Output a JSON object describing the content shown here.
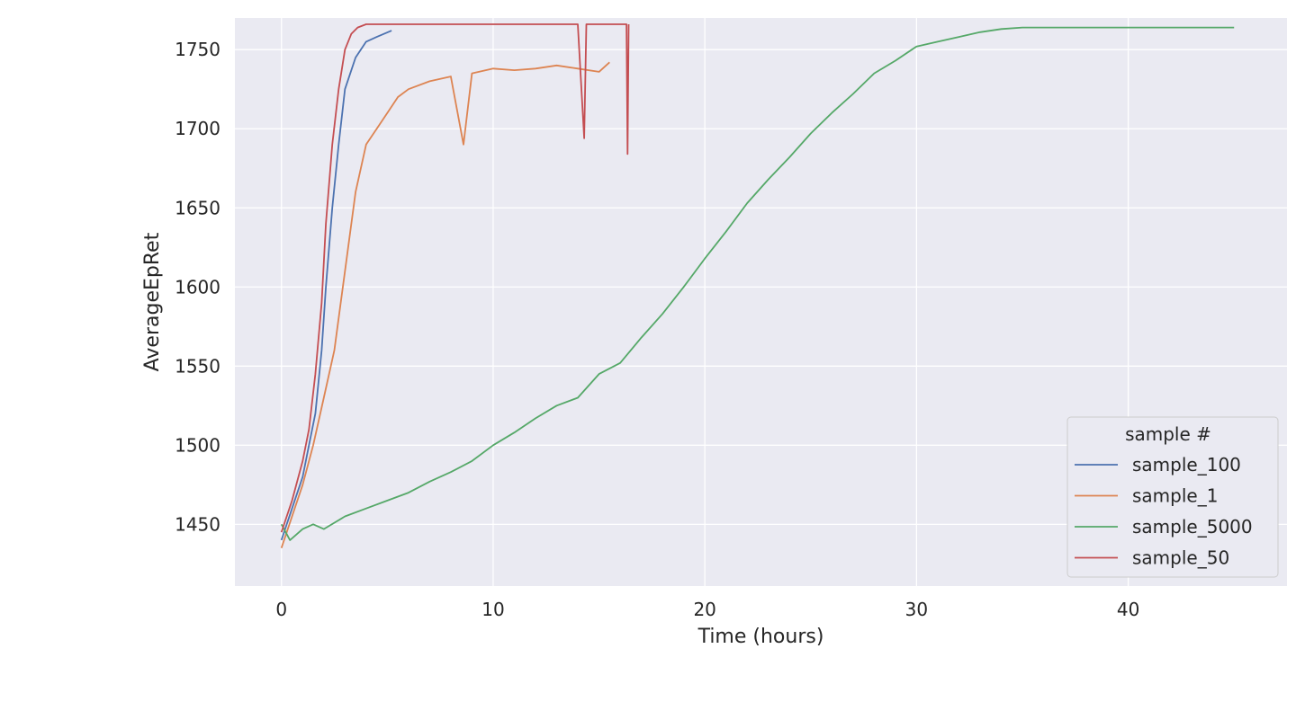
{
  "chart_data": {
    "type": "line",
    "xlabel": "Time (hours)",
    "ylabel": "AverageEpRet",
    "xlim": [
      -2.2,
      47.5
    ],
    "ylim": [
      1411,
      1770
    ],
    "x_ticks": [
      0,
      10,
      20,
      30,
      40
    ],
    "y_ticks": [
      1450,
      1500,
      1550,
      1600,
      1650,
      1700,
      1750
    ],
    "grid": true,
    "background": "#eaeaf2",
    "legend": {
      "title": "sample #",
      "placement": "bottom-right"
    },
    "series": [
      {
        "name": "sample_100",
        "color": "#4c72b0",
        "x": [
          0,
          0.5,
          1.0,
          1.3,
          1.6,
          1.9,
          2.1,
          2.4,
          2.7,
          3.0,
          3.5,
          4.0,
          4.5,
          5.2
        ],
        "y": [
          1440,
          1460,
          1480,
          1500,
          1520,
          1560,
          1600,
          1650,
          1690,
          1725,
          1745,
          1755,
          1758,
          1762
        ]
      },
      {
        "name": "sample_1",
        "color": "#dd8452",
        "x": [
          0,
          0.5,
          1.0,
          1.5,
          2.0,
          2.5,
          3.0,
          3.5,
          4.0,
          4.5,
          5.0,
          5.5,
          6.0,
          7.0,
          8.0,
          8.6,
          9.0,
          10.0,
          11.0,
          12.0,
          13.0,
          14.0,
          15.0,
          15.5
        ],
        "y": [
          1435,
          1455,
          1475,
          1500,
          1530,
          1560,
          1610,
          1660,
          1690,
          1700,
          1710,
          1720,
          1725,
          1730,
          1733,
          1690,
          1735,
          1738,
          1737,
          1738,
          1740,
          1738,
          1736,
          1742
        ]
      },
      {
        "name": "sample_5000",
        "color": "#55a868",
        "x": [
          0,
          0.4,
          1.0,
          1.5,
          2.0,
          3.0,
          4.0,
          5.0,
          6.0,
          7.0,
          8.0,
          9.0,
          10.0,
          11.0,
          12.0,
          13.0,
          14.0,
          15.0,
          16.0,
          17.0,
          18.0,
          19.0,
          20.0,
          21.0,
          22.0,
          23.0,
          24.0,
          25.0,
          26.0,
          27.0,
          28.0,
          29.0,
          30.0,
          31.0,
          32.0,
          33.0,
          34.0,
          35.0,
          36.0,
          38.0,
          40.0,
          42.0,
          44.0,
          45.0
        ],
        "y": [
          1450,
          1440,
          1447,
          1450,
          1447,
          1455,
          1460,
          1465,
          1470,
          1477,
          1483,
          1490,
          1500,
          1508,
          1517,
          1525,
          1530,
          1545,
          1552,
          1568,
          1583,
          1600,
          1618,
          1635,
          1653,
          1668,
          1682,
          1697,
          1710,
          1722,
          1735,
          1743,
          1752,
          1755,
          1758,
          1761,
          1763,
          1764,
          1764,
          1764,
          1764,
          1764,
          1764,
          1764
        ]
      },
      {
        "name": "sample_50",
        "color": "#c44e52",
        "x": [
          0,
          0.5,
          1.0,
          1.3,
          1.6,
          1.9,
          2.1,
          2.4,
          2.7,
          3.0,
          3.3,
          3.6,
          4.0,
          5.0,
          6.0,
          8.0,
          10.0,
          12.0,
          14.0,
          14.3,
          14.4,
          15.0,
          16.0,
          16.3,
          16.35,
          16.4
        ],
        "y": [
          1445,
          1465,
          1490,
          1510,
          1545,
          1590,
          1640,
          1690,
          1725,
          1750,
          1760,
          1764,
          1766,
          1766,
          1766,
          1766,
          1766,
          1766,
          1766,
          1694,
          1766,
          1766,
          1766,
          1766,
          1684,
          1766
        ]
      }
    ]
  }
}
